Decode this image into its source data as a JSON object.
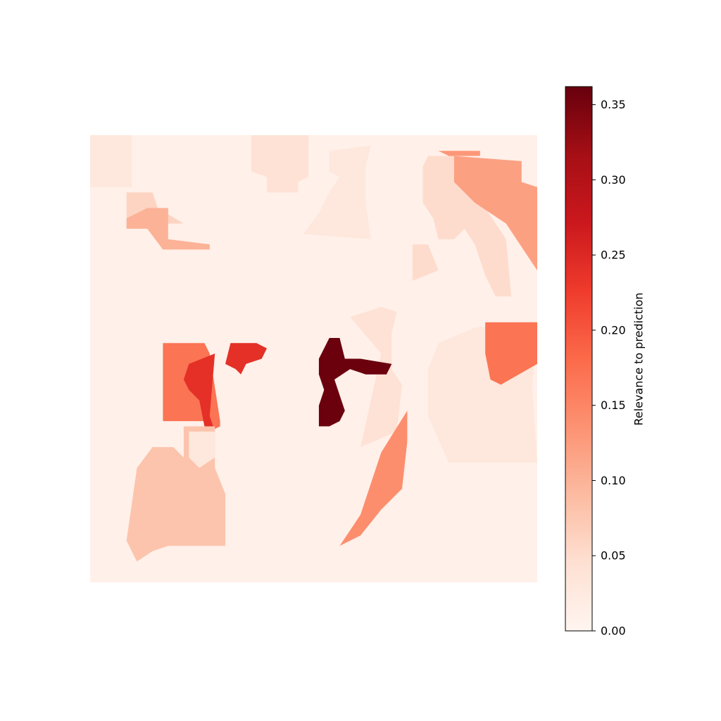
{
  "chart_data": {
    "type": "heatmap",
    "title": "",
    "xlabel": "",
    "ylabel": "",
    "axes_visible": false,
    "colormap": "Reds",
    "colormap_stops": [
      "#fff5f0",
      "#fee0d2",
      "#fcbba1",
      "#fc9272",
      "#fb6a4a",
      "#ef3b2c",
      "#cb181d",
      "#a50f15",
      "#67000d"
    ],
    "background_value": 0.01,
    "regions": [
      {
        "value": 0.03,
        "points": [
          [
            0,
            0
          ],
          [
            8,
            0
          ],
          [
            8,
            10
          ],
          [
            0,
            10
          ]
        ]
      },
      {
        "value": 0.04,
        "points": [
          [
            31,
            0
          ],
          [
            42,
            0
          ],
          [
            42,
            8
          ],
          [
            40,
            9
          ],
          [
            40,
            11
          ],
          [
            34,
            11
          ],
          [
            34,
            8
          ],
          [
            31,
            7
          ]
        ]
      },
      {
        "value": 0.03,
        "points": [
          [
            46,
            3
          ],
          [
            54,
            2
          ],
          [
            53,
            6
          ],
          [
            53,
            13
          ],
          [
            54,
            20
          ],
          [
            41,
            19
          ],
          [
            44,
            15
          ],
          [
            46,
            11
          ],
          [
            48,
            8
          ],
          [
            46,
            7
          ]
        ]
      },
      {
        "value": 0.06,
        "points": [
          [
            7,
            11
          ],
          [
            12,
            11
          ],
          [
            13,
            14
          ],
          [
            18,
            17
          ],
          [
            9,
            17
          ],
          [
            7,
            16
          ]
        ]
      },
      {
        "value": 0.1,
        "points": [
          [
            11,
            14
          ],
          [
            15,
            14
          ],
          [
            15,
            21
          ],
          [
            14,
            22
          ],
          [
            11,
            18
          ],
          [
            7,
            18
          ],
          [
            7,
            16
          ]
        ]
      },
      {
        "value": 0.1,
        "points": [
          [
            15,
            20
          ],
          [
            23,
            21
          ],
          [
            23,
            22
          ],
          [
            14,
            22
          ]
        ]
      },
      {
        "value": 0.05,
        "points": [
          [
            65,
            4
          ],
          [
            70,
            4
          ],
          [
            74,
            11
          ],
          [
            80,
            20
          ],
          [
            81,
            31
          ],
          [
            78,
            31
          ],
          [
            76,
            27
          ],
          [
            74,
            21
          ],
          [
            72,
            18
          ],
          [
            70,
            20
          ],
          [
            67,
            20
          ],
          [
            66,
            16
          ],
          [
            64,
            13
          ],
          [
            64,
            6
          ]
        ]
      },
      {
        "value": 0.12,
        "points": [
          [
            70,
            4
          ],
          [
            83,
            5
          ],
          [
            83,
            9
          ],
          [
            86,
            10
          ],
          [
            86,
            26
          ],
          [
            80,
            17
          ],
          [
            74,
            13
          ],
          [
            70,
            9
          ]
        ]
      },
      {
        "value": 0.13,
        "points": [
          [
            67,
            3
          ],
          [
            75,
            3
          ],
          [
            75,
            4
          ],
          [
            69,
            4
          ]
        ]
      },
      {
        "value": 0.05,
        "points": [
          [
            62,
            21
          ],
          [
            65,
            21
          ],
          [
            67,
            26
          ],
          [
            62,
            28
          ]
        ]
      },
      {
        "value": 0.04,
        "points": [
          [
            50,
            35
          ],
          [
            56,
            33
          ],
          [
            59,
            34
          ],
          [
            58,
            38
          ],
          [
            58,
            45
          ],
          [
            60,
            48
          ],
          [
            59,
            57
          ],
          [
            52,
            60
          ],
          [
            54,
            51
          ],
          [
            56,
            42
          ]
        ]
      },
      {
        "value": 0.03,
        "points": [
          [
            67,
            40
          ],
          [
            74,
            37
          ],
          [
            84,
            36
          ],
          [
            86,
            38
          ],
          [
            85,
            48
          ],
          [
            86,
            63
          ],
          [
            69,
            63
          ],
          [
            65,
            54
          ],
          [
            65,
            45
          ]
        ]
      },
      {
        "value": 0.04,
        "points": [
          [
            82,
            36
          ],
          [
            86,
            36
          ],
          [
            86,
            44
          ],
          [
            84,
            44
          ]
        ]
      },
      {
        "value": 0.17,
        "points": [
          [
            76,
            36
          ],
          [
            86,
            36
          ],
          [
            86,
            44
          ],
          [
            79,
            48
          ],
          [
            77,
            47
          ],
          [
            76,
            42
          ]
        ]
      },
      {
        "value": 0.17,
        "points": [
          [
            14,
            40
          ],
          [
            22,
            40
          ],
          [
            23,
            42
          ],
          [
            25,
            55
          ],
          [
            25,
            56
          ],
          [
            23,
            57
          ],
          [
            22,
            55
          ],
          [
            14,
            55
          ]
        ]
      },
      {
        "value": 0.24,
        "points": [
          [
            19,
            44
          ],
          [
            24,
            42
          ],
          [
            23,
            54
          ],
          [
            24,
            57
          ],
          [
            22,
            56
          ],
          [
            21,
            51
          ],
          [
            19,
            49
          ],
          [
            18,
            47
          ]
        ]
      },
      {
        "value": 0.24,
        "points": [
          [
            27,
            40
          ],
          [
            32,
            40
          ],
          [
            34,
            41
          ],
          [
            33,
            43
          ],
          [
            30,
            44
          ],
          [
            29,
            46
          ],
          [
            28,
            45
          ],
          [
            26,
            44
          ]
        ]
      },
      {
        "value": 0.36,
        "points": [
          [
            46,
            39
          ],
          [
            48,
            39
          ],
          [
            49,
            43
          ],
          [
            52,
            43
          ],
          [
            58,
            44
          ],
          [
            57,
            46
          ],
          [
            53,
            46
          ],
          [
            50,
            45
          ],
          [
            47,
            47
          ],
          [
            48,
            50
          ],
          [
            49,
            53
          ],
          [
            48,
            55
          ],
          [
            46,
            56
          ],
          [
            44,
            56
          ],
          [
            44,
            52
          ],
          [
            45,
            49
          ],
          [
            44,
            46
          ],
          [
            44,
            43
          ]
        ]
      },
      {
        "value": 0.14,
        "points": [
          [
            61,
            53
          ],
          [
            61,
            59
          ],
          [
            60,
            68
          ],
          [
            56,
            72
          ],
          [
            52,
            77
          ],
          [
            48,
            79
          ],
          [
            52,
            73
          ],
          [
            54,
            67
          ],
          [
            56,
            61
          ]
        ]
      },
      {
        "value": 0.08,
        "points": [
          [
            9,
            64
          ],
          [
            12,
            60
          ],
          [
            16,
            60
          ],
          [
            18,
            62
          ],
          [
            18,
            56
          ],
          [
            24,
            56
          ],
          [
            24,
            64
          ],
          [
            26,
            69
          ],
          [
            26,
            79
          ],
          [
            15,
            79
          ],
          [
            12,
            80
          ],
          [
            9,
            82
          ],
          [
            7,
            78
          ]
        ]
      },
      {
        "value": 0.03,
        "points": [
          [
            19,
            57
          ],
          [
            24,
            57
          ],
          [
            24,
            62
          ],
          [
            21,
            64
          ],
          [
            19,
            62
          ]
        ]
      }
    ],
    "colorbar": {
      "label": "Relevance to prediction",
      "vmin": 0.0,
      "vmax": 0.362,
      "ticks": [
        0.0,
        0.05,
        0.1,
        0.15,
        0.2,
        0.25,
        0.3,
        0.35
      ],
      "tick_labels": [
        "0.00",
        "0.05",
        "0.10",
        "0.15",
        "0.20",
        "0.25",
        "0.30",
        "0.35"
      ]
    }
  }
}
